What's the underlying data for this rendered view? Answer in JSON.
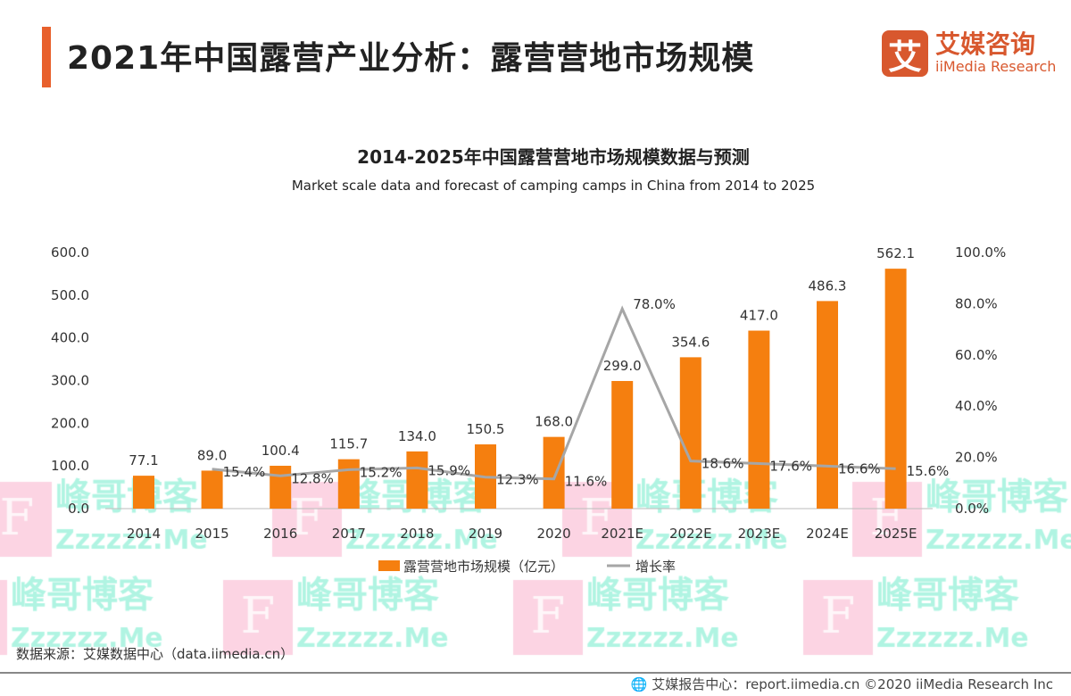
{
  "header": {
    "title": "2021年中国露营产业分析：露营营地市场规模"
  },
  "logo": {
    "mark": "艾",
    "cn": "艾媒咨询",
    "en": "iiMedia Research"
  },
  "chart_data": {
    "type": "bar+line",
    "title": "2014-2025年中国露营营地市场规模数据与预测",
    "subtitle": "Market scale data and forecast of camping camps in China from 2014 to 2025",
    "categories": [
      "2014",
      "2015",
      "2016",
      "2017",
      "2018",
      "2019",
      "2020",
      "2021E",
      "2022E",
      "2023E",
      "2024E",
      "2025E"
    ],
    "series": [
      {
        "name": "露营营地市场规模（亿元）",
        "type": "bar",
        "axis": "left",
        "color": "#f57f0f",
        "values": [
          77.1,
          89.0,
          100.4,
          115.7,
          134.0,
          150.5,
          168.0,
          299.0,
          354.6,
          417.0,
          486.3,
          562.1
        ],
        "labels": [
          "77.1",
          "89.0",
          "100.4",
          "115.7",
          "134.0",
          "150.5",
          "168.0",
          "299.0",
          "354.6",
          "417.0",
          "486.3",
          "562.1"
        ]
      },
      {
        "name": "增长率",
        "type": "line",
        "axis": "right",
        "color": "#a6a6a6",
        "values": [
          null,
          15.4,
          12.8,
          15.2,
          15.9,
          12.3,
          11.6,
          78.0,
          18.6,
          17.6,
          16.6,
          15.6
        ],
        "labels": [
          "",
          "15.4%",
          "12.8%",
          "15.2%",
          "15.9%",
          "12.3%",
          "11.6%",
          "78.0%",
          "18.6%",
          "17.6%",
          "16.6%",
          "15.6%"
        ]
      }
    ],
    "ylim": [
      0,
      600
    ],
    "y_ticks": [
      "0.0",
      "100.0",
      "200.0",
      "300.0",
      "400.0",
      "500.0",
      "600.0"
    ],
    "y2lim": [
      0,
      100
    ],
    "y2_ticks": [
      "0.0%",
      "20.0%",
      "40.0%",
      "60.0%",
      "80.0%",
      "100.0%"
    ],
    "grid": false,
    "legend": "bottom"
  },
  "source": "数据来源：艾媒数据中心（data.iimedia.cn）",
  "footer": "艾媒报告中心：report.iimedia.cn   ©2020  iiMedia Research  Inc",
  "watermark": {
    "cn": "峰哥博客",
    "en": "Zzzzzz.Me",
    "mark": "F"
  }
}
